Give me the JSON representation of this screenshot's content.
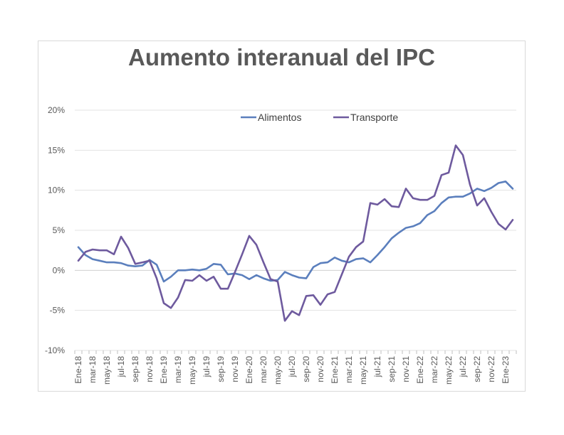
{
  "chart_data": {
    "type": "line",
    "title": "Aumento interanual del IPC",
    "xlabel": "",
    "ylabel": "",
    "ylim": [
      -10,
      20
    ],
    "y_ticks": [
      "20%",
      "15%",
      "10%",
      "5%",
      "0%",
      "-5%",
      "-10%"
    ],
    "y_tick_values": [
      20,
      15,
      10,
      5,
      0,
      -5,
      -10
    ],
    "grid": true,
    "legend_position": "top",
    "x": [
      "Ene-18",
      "feb-18",
      "mar-18",
      "abr-18",
      "may-18",
      "jun-18",
      "jul-18",
      "ago-18",
      "sep-18",
      "oct-18",
      "nov-18",
      "dic-18",
      "Ene-19",
      "feb-19",
      "mar-19",
      "abr-19",
      "may-19",
      "jun-19",
      "jul-19",
      "ago-19",
      "sep-19",
      "oct-19",
      "nov-19",
      "dic-19",
      "Ene-20",
      "feb-20",
      "mar-20",
      "abr-20",
      "may-20",
      "jun-20",
      "jul-20",
      "ago-20",
      "sep-20",
      "oct-20",
      "nov-20",
      "dic-20",
      "Ene-21",
      "feb-21",
      "mar-21",
      "abr-21",
      "may-21",
      "jun-21",
      "jul-21",
      "ago-21",
      "sep-21",
      "oct-21",
      "nov-21",
      "dic-21",
      "Ene-22",
      "feb-22",
      "mar-22",
      "abr-22",
      "may-22",
      "jun-22",
      "jul-22",
      "ago-22",
      "sep-22",
      "oct-22",
      "nov-22",
      "dic-22",
      "Ene-23",
      "feb-23"
    ],
    "x_tick_labels": [
      "Ene-18",
      "mar-18",
      "may-18",
      "jul-18",
      "sep-18",
      "nov-18",
      "Ene-19",
      "mar-19",
      "may-19",
      "jul-19",
      "sep-19",
      "nov-19",
      "Ene-20",
      "mar-20",
      "may-20",
      "jul-20",
      "sep-20",
      "nov-20",
      "Ene-21",
      "mar-21",
      "may-21",
      "jul-21",
      "sep-21",
      "nov-21",
      "Ene-22",
      "mar-22",
      "may-22",
      "jul-22",
      "sep-22",
      "nov-22",
      "Ene-23"
    ],
    "series": [
      {
        "name": "Alimentos",
        "color": "#5b7fbd",
        "values": [
          2.9,
          1.9,
          1.4,
          1.2,
          1.0,
          1.0,
          0.9,
          0.6,
          0.5,
          0.6,
          1.3,
          0.7,
          -1.4,
          -0.8,
          0.0,
          0.0,
          0.1,
          0.0,
          0.2,
          0.8,
          0.7,
          -0.5,
          -0.4,
          -0.6,
          -1.1,
          -0.6,
          -1.0,
          -1.3,
          -1.2,
          -0.2,
          -0.6,
          -0.9,
          -1.0,
          0.4,
          0.9,
          1.0,
          1.6,
          1.2,
          1.0,
          1.4,
          1.5,
          1.0,
          1.9,
          2.9,
          4.0,
          4.7,
          5.3,
          5.5,
          5.9,
          6.9,
          7.4,
          8.4,
          9.1,
          9.2,
          9.2,
          9.6,
          10.2,
          9.9,
          10.3,
          10.9,
          11.1,
          10.2
        ]
      },
      {
        "name": "Transporte",
        "color": "#6e5a9e",
        "values": [
          1.2,
          2.3,
          2.6,
          2.5,
          2.5,
          2.0,
          4.2,
          2.8,
          0.8,
          1.0,
          1.2,
          -1.0,
          -4.1,
          -4.7,
          -3.4,
          -1.2,
          -1.3,
          -0.6,
          -1.3,
          -0.8,
          -2.3,
          -2.3,
          -0.2,
          2.0,
          4.3,
          3.2,
          1.0,
          -1.1,
          -1.4,
          -6.3,
          -5.1,
          -5.6,
          -3.2,
          -3.1,
          -4.3,
          -3.0,
          -2.7,
          -0.5,
          1.7,
          2.9,
          3.6,
          8.4,
          8.2,
          8.9,
          8.0,
          7.9,
          10.2,
          9.0,
          8.8,
          8.8,
          9.3,
          11.9,
          12.2,
          15.6,
          14.4,
          10.7,
          8.1,
          9.0,
          7.3,
          5.8,
          5.1,
          6.3
        ]
      }
    ]
  }
}
